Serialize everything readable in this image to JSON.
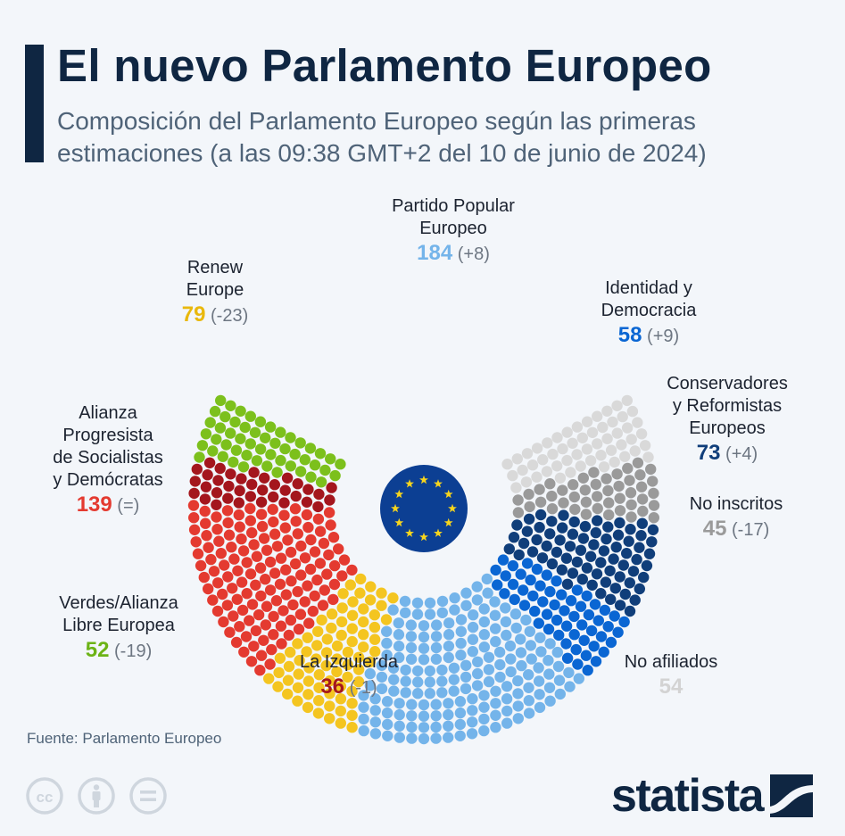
{
  "header": {
    "title": "El nuevo Parlamento Europeo",
    "subtitle": "Composición del Parlamento Europeo según las primeras estimaciones (a las 09:38 GMT+2 del 10 de junio de 2024)"
  },
  "chart_data": {
    "type": "parliament",
    "unit": "escaños",
    "order": "left-to-right",
    "series": [
      {
        "label_lines": [
          "Verdes/Alianza",
          "Libre Europea"
        ],
        "seats": 52,
        "change": "(-19)",
        "color": "#7cc01c"
      },
      {
        "label_lines": [
          "La Izquierda"
        ],
        "seats": 36,
        "change": "(-1)",
        "color": "#a4161d"
      },
      {
        "label_lines": [
          "Alianza",
          "Progresista",
          "de Socialistas",
          "y Demócratas"
        ],
        "seats": 139,
        "change": "(=)",
        "color": "#e43a30"
      },
      {
        "label_lines": [
          "Renew",
          "Europe"
        ],
        "seats": 79,
        "change": "(-23)",
        "color": "#f4c520"
      },
      {
        "label_lines": [
          "Partido Popular",
          "Europeo"
        ],
        "seats": 184,
        "change": "(+8)",
        "color": "#74b4ea"
      },
      {
        "label_lines": [
          "Identidad y",
          "Democracia"
        ],
        "seats": 58,
        "change": "(+9)",
        "color": "#0a66d3"
      },
      {
        "label_lines": [
          "Conservadores",
          "y Reformistas",
          "Europeos"
        ],
        "seats": 73,
        "change": "(+4)",
        "color": "#103e7a"
      },
      {
        "label_lines": [
          "No inscritos"
        ],
        "seats": 45,
        "change": "(-17)",
        "color": "#9a9a9a"
      },
      {
        "label_lines": [
          "No afiliados"
        ],
        "seats": 54,
        "change": "",
        "color": "#d9d9d9"
      }
    ],
    "center_icon": "eu-flag-icon"
  },
  "footer": {
    "source": "Fuente: Parlamento Europeo",
    "license_icons": [
      "cc-icon",
      "by-icon",
      "nd-icon"
    ],
    "brand": "statista"
  }
}
